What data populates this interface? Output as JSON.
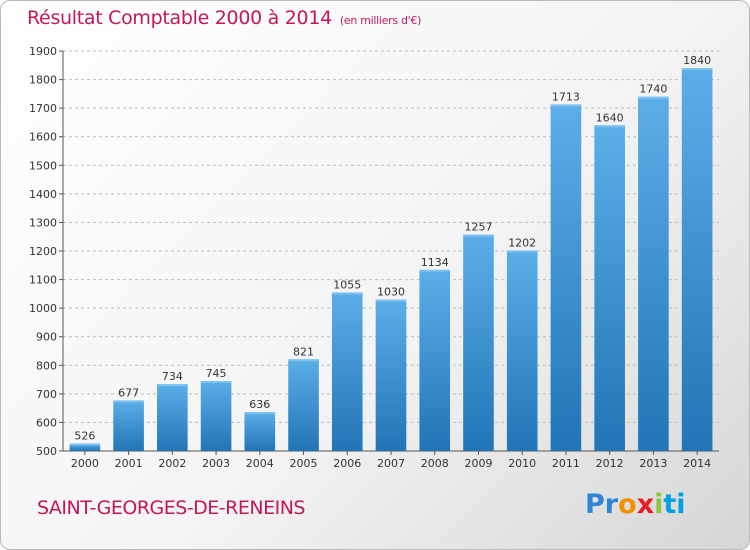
{
  "header": {
    "title": "Résultat Comptable 2000 à 2014",
    "subtitle": "(en milliers d'€)"
  },
  "town": "SAINT-GEORGES-DE-RENEINS",
  "logo": {
    "text": "Proxiti"
  },
  "colors": {
    "title": "#c2185b",
    "bar_top": "#5caee8",
    "bar_bottom": "#2175b6",
    "grid": "#bdbdbd"
  },
  "chart_data": {
    "type": "bar",
    "title": "Résultat Comptable 2000 à 2014",
    "subtitle": "(en milliers d'€)",
    "categories": [
      "2000",
      "2001",
      "2002",
      "2003",
      "2004",
      "2005",
      "2006",
      "2007",
      "2008",
      "2009",
      "2010",
      "2011",
      "2012",
      "2013",
      "2014"
    ],
    "values": [
      526,
      677,
      734,
      745,
      636,
      821,
      1055,
      1030,
      1134,
      1257,
      1202,
      1713,
      1640,
      1740,
      1840
    ],
    "ylim": [
      500,
      1900
    ],
    "yticks": [
      500,
      600,
      700,
      800,
      900,
      1000,
      1100,
      1200,
      1300,
      1400,
      1500,
      1600,
      1700,
      1800,
      1900
    ],
    "grid": true,
    "legend": "none"
  }
}
